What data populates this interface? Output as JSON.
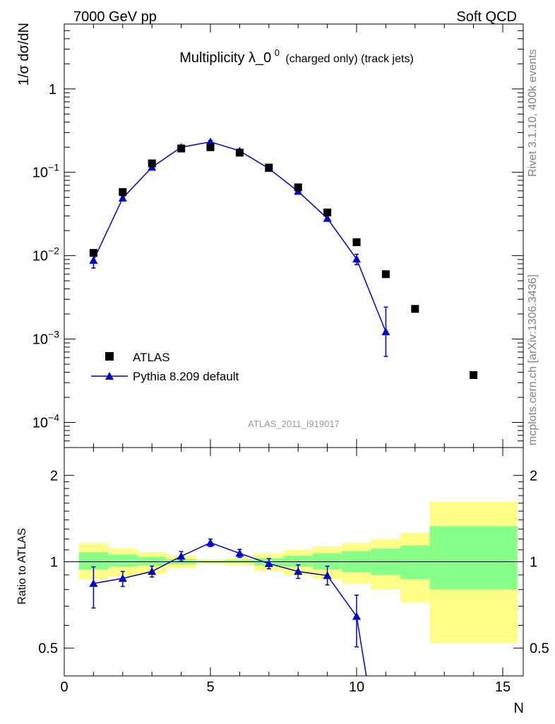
{
  "header": {
    "left": "7000 GeV pp",
    "right": "Soft QCD"
  },
  "side_labels": {
    "rivet": "Rivet 3.1.10,  400k events",
    "mcplots": "mcplots.cern.ch [arXiv:1306.3436]"
  },
  "chart_data": [
    {
      "type": "scatter",
      "title_main": "Multiplicity λ_0",
      "title_sup": "0",
      "title_small": "(charged only) (track jets)",
      "ylabel": "1/σ dσ/dN",
      "yscale": "log",
      "ylim": [
        5e-05,
        6
      ],
      "xlim": [
        0,
        15.7
      ],
      "y_ticks": [
        {
          "value": 1,
          "base": "1",
          "exp": ""
        },
        {
          "value": 0.1,
          "base": "10",
          "exp": "−1"
        },
        {
          "value": 0.01,
          "base": "10",
          "exp": "−2"
        },
        {
          "value": 0.001,
          "base": "10",
          "exp": "−3"
        },
        {
          "value": 0.0001,
          "base": "10",
          "exp": "−4"
        }
      ],
      "watermark": "ATLAS_2011_I919017",
      "legend_position": "bottom-left",
      "series": [
        {
          "name": "ATLAS",
          "marker": "square",
          "color": "#000000",
          "x": [
            1,
            2,
            3,
            4,
            5,
            6,
            7,
            8,
            9,
            10,
            11,
            12,
            14
          ],
          "y": [
            0.0108,
            0.058,
            0.128,
            0.193,
            0.2,
            0.172,
            0.114,
            0.066,
            0.033,
            0.0145,
            0.006,
            0.0023,
            0.00037
          ]
        },
        {
          "name": "Pythia 8.209 default",
          "marker": "triangle",
          "color": "#0000cc",
          "x": [
            1,
            2,
            3,
            4,
            5,
            6,
            7,
            8,
            9,
            10,
            11
          ],
          "y": [
            0.0088,
            0.049,
            0.115,
            0.2,
            0.232,
            0.181,
            0.111,
            0.059,
            0.028,
            0.0091,
            0.00122
          ],
          "y_err_low": [
            0.0017,
            0.003,
            0.005,
            0.008,
            0.008,
            0.007,
            0.005,
            0.003,
            0.002,
            0.0013,
            0.0006
          ],
          "y_err_high": [
            0.0017,
            0.003,
            0.005,
            0.008,
            0.008,
            0.007,
            0.005,
            0.003,
            0.002,
            0.0013,
            0.0012
          ]
        }
      ]
    },
    {
      "type": "line",
      "ylabel": "Ratio to ATLAS",
      "xlabel": "N",
      "yscale": "log",
      "ylim": [
        0.4,
        2.5
      ],
      "xlim": [
        0,
        15.7
      ],
      "y_ticks": [
        {
          "value": 0.5,
          "label": "0.5"
        },
        {
          "value": 1,
          "label": "1"
        },
        {
          "value": 2,
          "label": "2"
        }
      ],
      "x_ticks": [
        {
          "value": 0,
          "label": "0"
        },
        {
          "value": 5,
          "label": "5"
        },
        {
          "value": 10,
          "label": "10"
        },
        {
          "value": 15,
          "label": "15"
        }
      ],
      "bands": {
        "outer_color": "#ffff88",
        "inner_color": "#88ff88",
        "bins": [
          {
            "x0": 0.5,
            "x1": 1.5,
            "outer": [
              0.87,
              1.16
            ],
            "inner": [
              0.94,
              1.08
            ]
          },
          {
            "x0": 1.5,
            "x1": 2.5,
            "outer": [
              0.89,
              1.11
            ],
            "inner": [
              0.96,
              1.06
            ]
          },
          {
            "x0": 2.5,
            "x1": 3.5,
            "outer": [
              0.91,
              1.08
            ],
            "inner": [
              0.97,
              1.04
            ]
          },
          {
            "x0": 3.5,
            "x1": 4.5,
            "outer": [
              0.95,
              1.05
            ],
            "inner": [
              0.98,
              1.02
            ]
          },
          {
            "x0": 4.5,
            "x1": 5.5,
            "outer": [
              0.98,
              1.02
            ],
            "inner": [
              0.99,
              1.01
            ]
          },
          {
            "x0": 5.5,
            "x1": 6.5,
            "outer": [
              0.97,
              1.03
            ],
            "inner": [
              0.99,
              1.015
            ]
          },
          {
            "x0": 6.5,
            "x1": 7.5,
            "outer": [
              0.93,
              1.07
            ],
            "inner": [
              0.97,
              1.03
            ]
          },
          {
            "x0": 7.5,
            "x1": 8.5,
            "outer": [
              0.9,
              1.1
            ],
            "inner": [
              0.96,
              1.05
            ]
          },
          {
            "x0": 8.5,
            "x1": 9.5,
            "outer": [
              0.87,
              1.13
            ],
            "inner": [
              0.94,
              1.07
            ]
          },
          {
            "x0": 9.5,
            "x1": 10.5,
            "outer": [
              0.84,
              1.16
            ],
            "inner": [
              0.92,
              1.09
            ]
          },
          {
            "x0": 10.5,
            "x1": 11.5,
            "outer": [
              0.8,
              1.2
            ],
            "inner": [
              0.9,
              1.11
            ]
          },
          {
            "x0": 11.5,
            "x1": 12.5,
            "outer": [
              0.72,
              1.26
            ],
            "inner": [
              0.87,
              1.14
            ]
          },
          {
            "x0": 12.5,
            "x1": 15.5,
            "outer": [
              0.52,
              1.62
            ],
            "inner": [
              0.8,
              1.33
            ]
          }
        ]
      },
      "series": [
        {
          "name": "Pythia 8.209 default",
          "marker": "triangle",
          "color": "#0000cc",
          "x": [
            1,
            2,
            3,
            4,
            5,
            6,
            7,
            8,
            9,
            10,
            10.35
          ],
          "y": [
            0.84,
            0.875,
            0.925,
            1.045,
            1.165,
            1.07,
            0.985,
            0.925,
            0.895,
            0.645,
            0.39
          ],
          "marker_points": 10,
          "y_err_low": [
            0.15,
            0.055,
            0.04,
            0.04,
            0.035,
            0.035,
            0.04,
            0.05,
            0.065,
            0.14
          ],
          "y_err_high": [
            0.12,
            0.05,
            0.04,
            0.04,
            0.035,
            0.035,
            0.04,
            0.05,
            0.07,
            0.12
          ]
        }
      ]
    }
  ]
}
